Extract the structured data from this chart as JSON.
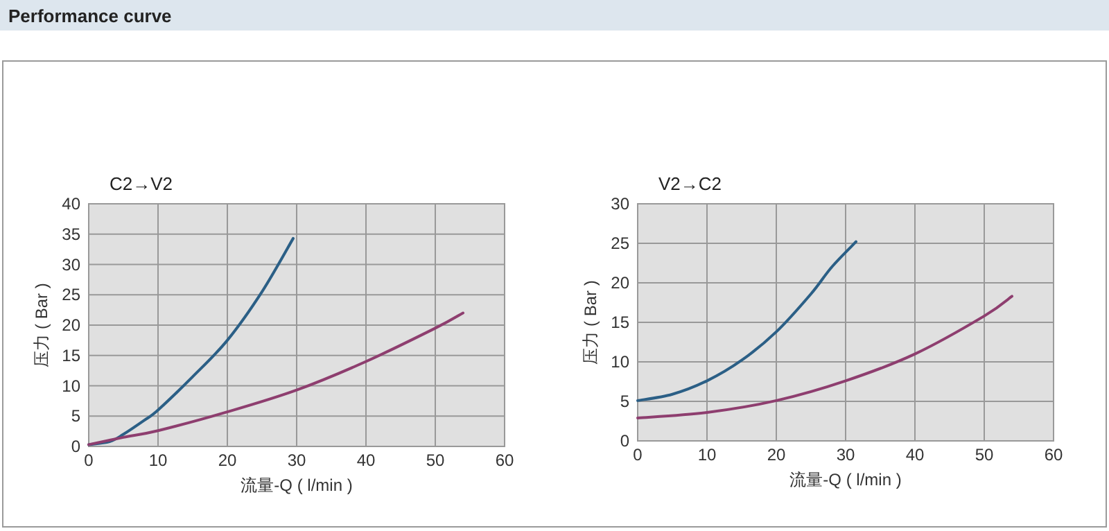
{
  "chart_data": [
    {
      "type": "line",
      "title": "C2→V2",
      "xlabel": "流量-Q ( l/min )",
      "ylabel": "压力 ( Bar )",
      "annotations": [
        "Performance curve"
      ],
      "xlim": [
        0,
        60
      ],
      "ylim": [
        0,
        40
      ],
      "xticks": [
        0,
        10,
        20,
        30,
        40,
        50,
        60
      ],
      "yticks": [
        0,
        5,
        10,
        15,
        20,
        25,
        30,
        35,
        40
      ],
      "grid": true,
      "line_style": "solid",
      "series": [
        {
          "color": "#2b5f86",
          "x": [
            0,
            3,
            5,
            8,
            10,
            15,
            20,
            25,
            29.5
          ],
          "values": [
            0.3,
            0.8,
            2,
            4.3,
            6,
            11.5,
            17.5,
            25.5,
            34.3
          ]
        },
        {
          "color": "#8e3e6f",
          "x": [
            0,
            5,
            10,
            20,
            30,
            40,
            50,
            54
          ],
          "values": [
            0.3,
            1.5,
            2.6,
            5.7,
            9.3,
            14,
            19.5,
            22
          ]
        }
      ]
    },
    {
      "type": "line",
      "title": "V2→C2",
      "xlabel": "流量-Q ( l/min )",
      "ylabel": "压力 ( Bar )",
      "xlim": [
        0,
        60
      ],
      "ylim": [
        0,
        30
      ],
      "xticks": [
        0,
        10,
        20,
        30,
        40,
        50,
        60
      ],
      "yticks": [
        0,
        5,
        10,
        15,
        20,
        25,
        30
      ],
      "grid": true,
      "line_style": "solid",
      "series": [
        {
          "color": "#2b5f86",
          "x": [
            0,
            5,
            10,
            15,
            20,
            25,
            28,
            31.5
          ],
          "values": [
            5.1,
            5.9,
            7.6,
            10.2,
            13.8,
            18.6,
            22,
            25.2
          ]
        },
        {
          "color": "#8e3e6f",
          "x": [
            0,
            10,
            20,
            30,
            40,
            50,
            54
          ],
          "values": [
            2.9,
            3.6,
            5.1,
            7.6,
            11,
            15.8,
            18.3
          ]
        }
      ]
    }
  ]
}
